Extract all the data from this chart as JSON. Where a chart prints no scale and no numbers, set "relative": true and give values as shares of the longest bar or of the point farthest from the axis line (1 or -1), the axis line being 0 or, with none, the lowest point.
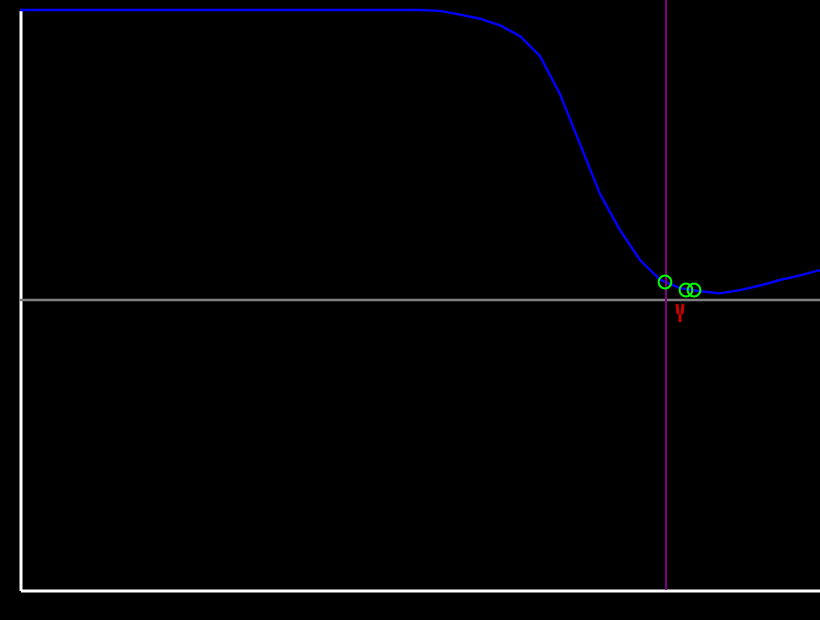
{
  "chart_data": {
    "type": "line",
    "relative": true,
    "grid": false,
    "categories": [
      null,
      null,
      null,
      null,
      null,
      null,
      null,
      null,
      null,
      null,
      null,
      null,
      null,
      null,
      null,
      null,
      null,
      null,
      null,
      null,
      null,
      null,
      null,
      null,
      null,
      null,
      null,
      null,
      null,
      null,
      null,
      null,
      null,
      null,
      null,
      null,
      null,
      null,
      null,
      null,
      null
    ],
    "series": [
      {
        "color": "#0000ff",
        "values": [
          1,
          1,
          1,
          1,
          1,
          1,
          1,
          1,
          1,
          1,
          1,
          1,
          1,
          1,
          1,
          1,
          1,
          1,
          1,
          1,
          1,
          0.997,
          0.984,
          0.97,
          0.947,
          0.91,
          0.841,
          0.71,
          0.538,
          0.366,
          0.241,
          0.138,
          0.07,
          0.041,
          0.03,
          0.023,
          0.034,
          0.05,
          0.069,
          0.085,
          0.103
        ]
      }
    ]
  }
}
